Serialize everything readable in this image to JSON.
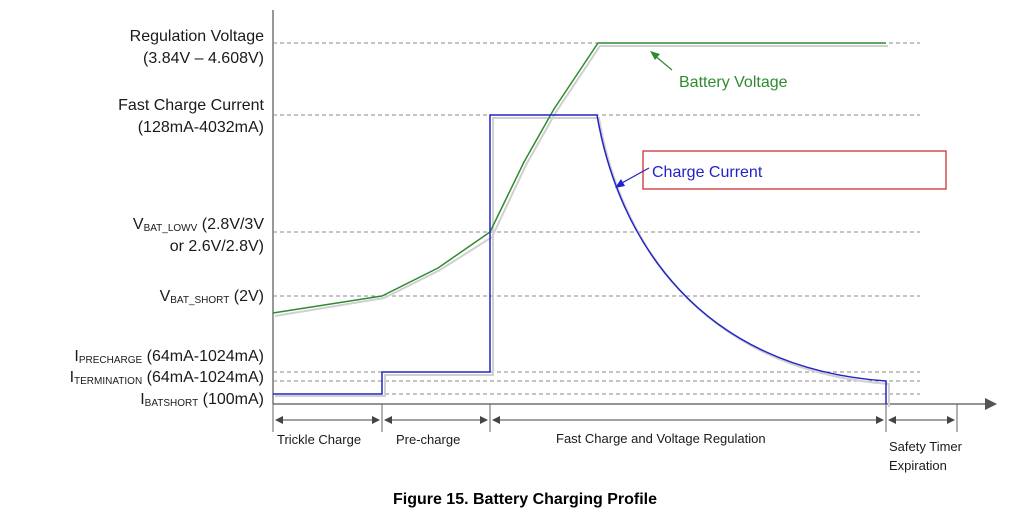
{
  "figure_caption": "Figure 15.  Battery Charging Profile",
  "y_labels": {
    "regulation_voltage": {
      "line1": "Regulation Voltage",
      "line2": "(3.84V – 4.608V)"
    },
    "fast_charge_current": {
      "line1": "Fast Charge Current",
      "line2": "(128mA-4032mA)"
    },
    "vbat_lowv": {
      "prefix": "V",
      "sub": "BAT_LOWV",
      "suffix": " (2.8V/3V",
      "line2": "or 2.6V/2.8V)"
    },
    "vbat_short": {
      "prefix": "V",
      "sub": "BAT_SHORT",
      "suffix": " (2V)"
    },
    "iprecharge": {
      "prefix": "I",
      "sub": "PRECHARGE",
      "suffix": " (64mA-1024mA)"
    },
    "itermination": {
      "prefix": "I",
      "sub": "TERMINATION",
      "suffix": " (64mA-1024mA)"
    },
    "ibatshort": {
      "prefix": "I",
      "sub": "BATSHORT",
      "suffix": " (100mA)"
    }
  },
  "annotations": {
    "battery_voltage": "Battery Voltage",
    "charge_current": "Charge Current"
  },
  "phases": {
    "trickle": "Trickle Charge",
    "precharge": "Pre-charge",
    "fast": "Fast Charge and Voltage Regulation",
    "safety_line1": "Safety Timer",
    "safety_line2": "Expiration"
  },
  "colors": {
    "voltage": "#2e8b2e",
    "current": "#2323c8",
    "callout_border": "#cc2222",
    "grid": "#8a8a8a"
  }
}
